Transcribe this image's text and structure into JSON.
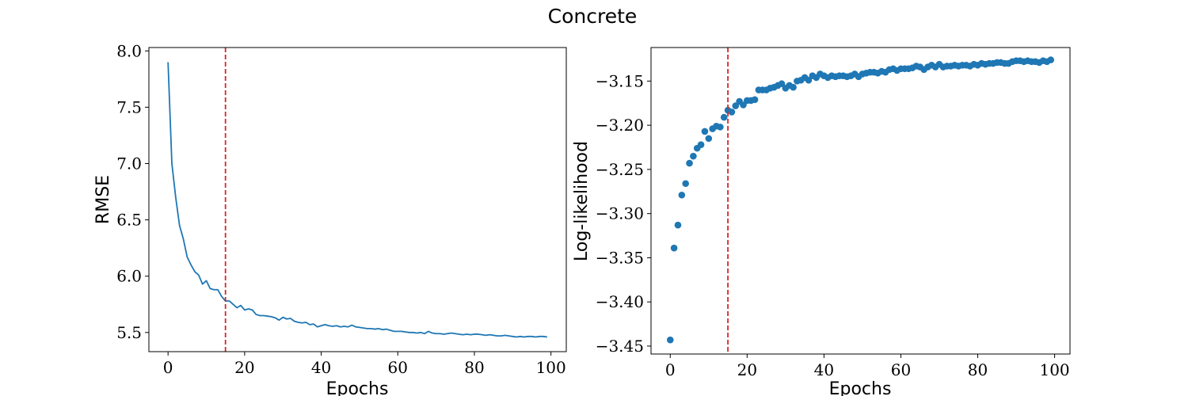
{
  "figure_title": "Concrete",
  "colors": {
    "series": "#1f77b4",
    "marker_line": "#d62728",
    "axes": "#000000"
  },
  "chart_data": [
    {
      "type": "line",
      "title": "",
      "xlabel": "Epochs",
      "ylabel": "RMSE",
      "xlim": [
        -5,
        104
      ],
      "ylim": [
        5.33,
        8.03
      ],
      "xticks": [
        0,
        20,
        40,
        60,
        80,
        100
      ],
      "xtick_labels": [
        "0",
        "20",
        "40",
        "60",
        "80",
        "100"
      ],
      "yticks": [
        5.5,
        6.0,
        6.5,
        7.0,
        7.5,
        8.0
      ],
      "ytick_labels": [
        "5.5",
        "6.0",
        "6.5",
        "7.0",
        "7.5",
        "8.0"
      ],
      "vline_x": 15,
      "x": [
        0,
        1,
        2,
        3,
        4,
        5,
        6,
        7,
        8,
        9,
        10,
        11,
        12,
        13,
        14,
        15,
        16,
        17,
        18,
        19,
        20,
        21,
        22,
        23,
        24,
        25,
        26,
        27,
        28,
        29,
        30,
        31,
        32,
        33,
        34,
        35,
        36,
        37,
        38,
        39,
        40,
        41,
        42,
        43,
        44,
        45,
        46,
        47,
        48,
        49,
        50,
        51,
        52,
        53,
        54,
        55,
        56,
        57,
        58,
        59,
        60,
        61,
        62,
        63,
        64,
        65,
        66,
        67,
        68,
        69,
        70,
        71,
        72,
        73,
        74,
        75,
        76,
        77,
        78,
        79,
        80,
        81,
        82,
        83,
        84,
        85,
        86,
        87,
        88,
        89,
        90,
        91,
        92,
        93,
        94,
        95,
        96,
        97,
        98,
        99
      ],
      "values": [
        7.9,
        7.0,
        6.7,
        6.45,
        6.33,
        6.17,
        6.1,
        6.04,
        6.01,
        5.93,
        5.96,
        5.89,
        5.88,
        5.88,
        5.82,
        5.78,
        5.78,
        5.75,
        5.72,
        5.74,
        5.7,
        5.71,
        5.7,
        5.66,
        5.65,
        5.65,
        5.645,
        5.64,
        5.63,
        5.61,
        5.635,
        5.62,
        5.625,
        5.6,
        5.59,
        5.585,
        5.59,
        5.57,
        5.575,
        5.55,
        5.56,
        5.57,
        5.56,
        5.555,
        5.56,
        5.55,
        5.555,
        5.55,
        5.565,
        5.55,
        5.545,
        5.54,
        5.535,
        5.535,
        5.53,
        5.535,
        5.525,
        5.53,
        5.52,
        5.51,
        5.51,
        5.51,
        5.505,
        5.5,
        5.5,
        5.495,
        5.5,
        5.49,
        5.51,
        5.495,
        5.49,
        5.49,
        5.485,
        5.49,
        5.495,
        5.49,
        5.485,
        5.48,
        5.485,
        5.48,
        5.485,
        5.485,
        5.48,
        5.475,
        5.48,
        5.475,
        5.47,
        5.47,
        5.475,
        5.47,
        5.465,
        5.46,
        5.465,
        5.46,
        5.465,
        5.465,
        5.46,
        5.465,
        5.465,
        5.46
      ]
    },
    {
      "type": "scatter",
      "title": "",
      "xlabel": "Epochs",
      "ylabel": "Log-likelihood",
      "xlim": [
        -5,
        104
      ],
      "ylim": [
        -3.459,
        -3.112
      ],
      "xticks": [
        0,
        20,
        40,
        60,
        80,
        100
      ],
      "xtick_labels": [
        "0",
        "20",
        "40",
        "60",
        "80",
        "100"
      ],
      "yticks": [
        -3.45,
        -3.4,
        -3.35,
        -3.3,
        -3.25,
        -3.2,
        -3.15
      ],
      "ytick_labels": [
        "−3.45",
        "−3.40",
        "−3.35",
        "−3.30",
        "−3.25",
        "−3.20",
        "−3.15"
      ],
      "vline_x": 15,
      "x": [
        0,
        1,
        2,
        3,
        4,
        5,
        6,
        7,
        8,
        9,
        10,
        11,
        12,
        13,
        14,
        15,
        16,
        17,
        18,
        19,
        20,
        21,
        22,
        23,
        24,
        25,
        26,
        27,
        28,
        29,
        30,
        31,
        32,
        33,
        34,
        35,
        36,
        37,
        38,
        39,
        40,
        41,
        42,
        43,
        44,
        45,
        46,
        47,
        48,
        49,
        50,
        51,
        52,
        53,
        54,
        55,
        56,
        57,
        58,
        59,
        60,
        61,
        62,
        63,
        64,
        65,
        66,
        67,
        68,
        69,
        70,
        71,
        72,
        73,
        74,
        75,
        76,
        77,
        78,
        79,
        80,
        81,
        82,
        83,
        84,
        85,
        86,
        87,
        88,
        89,
        90,
        91,
        92,
        93,
        94,
        95,
        96,
        97,
        98,
        99
      ],
      "values": [
        -3.443,
        -3.339,
        -3.313,
        -3.279,
        -3.266,
        -3.243,
        -3.235,
        -3.226,
        -3.222,
        -3.207,
        -3.215,
        -3.204,
        -3.201,
        -3.202,
        -3.191,
        -3.183,
        -3.185,
        -3.178,
        -3.173,
        -3.177,
        -3.172,
        -3.172,
        -3.171,
        -3.16,
        -3.16,
        -3.16,
        -3.158,
        -3.157,
        -3.155,
        -3.153,
        -3.158,
        -3.155,
        -3.157,
        -3.15,
        -3.149,
        -3.146,
        -3.149,
        -3.144,
        -3.146,
        -3.142,
        -3.144,
        -3.146,
        -3.144,
        -3.145,
        -3.144,
        -3.144,
        -3.145,
        -3.144,
        -3.142,
        -3.145,
        -3.142,
        -3.141,
        -3.14,
        -3.14,
        -3.141,
        -3.139,
        -3.14,
        -3.137,
        -3.136,
        -3.138,
        -3.136,
        -3.136,
        -3.136,
        -3.135,
        -3.133,
        -3.134,
        -3.137,
        -3.134,
        -3.132,
        -3.134,
        -3.131,
        -3.134,
        -3.133,
        -3.133,
        -3.132,
        -3.133,
        -3.132,
        -3.132,
        -3.133,
        -3.131,
        -3.132,
        -3.13,
        -3.131,
        -3.13,
        -3.13,
        -3.129,
        -3.129,
        -3.13,
        -3.13,
        -3.128,
        -3.127,
        -3.127,
        -3.128,
        -3.127,
        -3.128,
        -3.128,
        -3.129,
        -3.127,
        -3.128,
        -3.126
      ]
    }
  ]
}
